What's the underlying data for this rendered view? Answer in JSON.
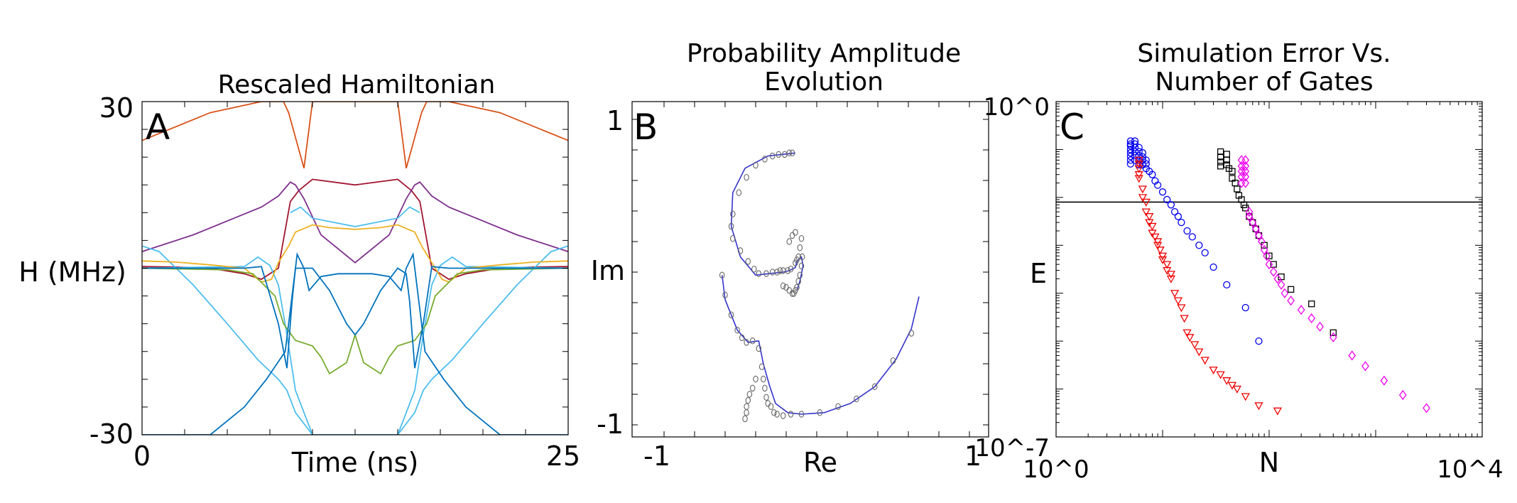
{
  "chart_data": [
    {
      "panel": "A",
      "type": "line",
      "title": "Rescaled Hamiltonian",
      "xlabel": "Time (ns)",
      "ylabel": "H (MHz)",
      "xlim": [
        0,
        25
      ],
      "ylim": [
        -30,
        30
      ],
      "xticklabels": [
        "0",
        "25"
      ],
      "yticklabels": [
        "30",
        "-30"
      ],
      "series": [
        {
          "name": "orange",
          "color": "#D95319",
          "x": [
            0,
            2,
            4,
            7,
            8.3,
            8.6,
            9.5,
            10,
            12.5,
            15,
            15.5,
            16.4,
            16.7,
            18,
            21,
            23,
            25
          ],
          "y": [
            23,
            25.5,
            28,
            30,
            30,
            28,
            18,
            30,
            30,
            30,
            18,
            28,
            30,
            30,
            28,
            25.5,
            23
          ]
        },
        {
          "name": "dark-red",
          "color": "#A2142F",
          "x": [
            0,
            2,
            4,
            6,
            7,
            8,
            8.7,
            9.2,
            10,
            12.5,
            15,
            15.8,
            16.3,
            17,
            18,
            19,
            21,
            23,
            25
          ],
          "y": [
            0.3,
            0.2,
            0,
            -1,
            -2,
            0,
            12,
            14,
            16,
            15,
            16,
            14,
            12,
            0,
            -2,
            -1,
            0,
            0.2,
            0.3
          ]
        },
        {
          "name": "purple",
          "color": "#7E2F8E",
          "x": [
            0,
            3,
            5.8,
            7,
            8,
            8.7,
            9,
            9.5,
            10.5,
            12.5,
            14.5,
            15.5,
            16,
            16.3,
            17,
            18,
            19.2,
            22,
            25
          ],
          "y": [
            3,
            6,
            9.5,
            11,
            13,
            15.5,
            15,
            12.5,
            6,
            1,
            6,
            12.5,
            15,
            15.5,
            13,
            11,
            9.5,
            6,
            3
          ]
        },
        {
          "name": "cyan",
          "color": "#4DBEEE",
          "x": [
            0,
            1,
            3,
            5,
            6.8,
            8,
            8.5,
            9,
            10,
            11,
            12.5,
            14,
            15,
            16,
            16.5,
            17,
            18.2,
            20,
            22,
            24,
            25
          ],
          "y": [
            4,
            3,
            -3,
            -10,
            -16.5,
            -20,
            -22,
            -26,
            -30,
            -30,
            -30,
            -30,
            -30,
            -26,
            -22,
            -20,
            -16.5,
            -10,
            -3,
            3,
            4
          ]
        },
        {
          "name": "cyan-2",
          "color": "#4DBEEE",
          "x": [
            0,
            6,
            6.8,
            7.5,
            8,
            8.5,
            9,
            10,
            12.5,
            15,
            16,
            16.5,
            17,
            17.5,
            18.2,
            19,
            25
          ],
          "y": [
            0,
            0.3,
            2,
            0.5,
            -3,
            -12,
            -22,
            -30,
            -30,
            -30,
            -22,
            -12,
            -3,
            0.5,
            2,
            0.3,
            0
          ]
        },
        {
          "name": "cyan-upper",
          "color": "#4DBEEE",
          "x": [
            8.7,
            9.3,
            10,
            12.5,
            15,
            15.7,
            16.3
          ],
          "y": [
            10,
            11,
            9,
            7.5,
            9,
            11,
            10
          ]
        },
        {
          "name": "yellow",
          "color": "#EDB120",
          "x": [
            0,
            2,
            4,
            6,
            7,
            7.6,
            8,
            8.6,
            9,
            10,
            11,
            12.5,
            14,
            15,
            16,
            16.4,
            17,
            17.6,
            18,
            19,
            21,
            23,
            25
          ],
          "y": [
            1.3,
            1.1,
            0.6,
            0,
            -2.5,
            -2,
            1,
            4,
            6.5,
            7.8,
            7.3,
            7,
            7.3,
            7.8,
            6.5,
            4,
            1,
            -2,
            -2.5,
            0,
            0.6,
            1.1,
            1.3
          ]
        },
        {
          "name": "green",
          "color": "#77AC30",
          "x": [
            0,
            5,
            6.5,
            7.8,
            8.3,
            9,
            10,
            10.5,
            11,
            12,
            12.5,
            13,
            14,
            14.5,
            15,
            16,
            16.7,
            17.2,
            18.5,
            20,
            25
          ],
          "y": [
            0,
            -0.3,
            -1,
            -5,
            -10,
            -13,
            -14,
            -16,
            -19,
            -17,
            -12,
            -17,
            -19,
            -16,
            -14,
            -13,
            -10,
            -5,
            -1,
            -0.3,
            0
          ]
        },
        {
          "name": "blue",
          "color": "#0072BD",
          "x": [
            0,
            6,
            7,
            8,
            8.5,
            8.8,
            9,
            10,
            11,
            12,
            12.5,
            13,
            14,
            15,
            15.5,
            15.7,
            16,
            16.5,
            17,
            18,
            19,
            25
          ],
          "y": [
            0,
            0,
            0.3,
            -10,
            -18,
            -6,
            0,
            0,
            -4,
            -10,
            -12,
            -10,
            -4,
            0,
            -1,
            -6,
            -18,
            -10,
            0.3,
            0,
            0,
            0
          ]
        },
        {
          "name": "blue-2",
          "color": "#0072BD",
          "x": [
            0,
            4,
            6,
            7.3,
            8.4,
            9.1,
            9.5,
            9.8,
            10.5,
            11.5,
            12.5,
            13.5,
            14.5,
            15.2,
            15.5,
            15.9,
            16.6,
            17.7,
            19,
            21,
            25
          ],
          "y": [
            -30,
            -30,
            -25,
            -20,
            -15,
            2.5,
            0,
            -4,
            -1.5,
            -1,
            -1,
            -1,
            -1.5,
            -4,
            0,
            2.5,
            -15,
            -20,
            -25,
            -30,
            -30
          ]
        }
      ]
    },
    {
      "panel": "B",
      "type": "line",
      "title": [
        "Probability Amplitude",
        "Evolution"
      ],
      "xlabel": "Re",
      "ylabel": "Im",
      "xlim": [
        -1,
        1
      ],
      "ylim": [
        -1,
        1
      ],
      "xticklabels": [
        "-1",
        "1"
      ],
      "yticklabels": [
        "1",
        "Im",
        "-1"
      ],
      "series": [
        {
          "name": "upper-spiral",
          "color": "#3333cc",
          "x": [
            -0.14,
            -0.32,
            -0.47,
            -0.55,
            -0.56,
            -0.5,
            -0.4,
            -0.31,
            -0.22,
            -0.18,
            -0.14,
            -0.13,
            -0.1,
            -0.09,
            -0.11,
            -0.13
          ],
          "y": [
            0.78,
            0.76,
            0.68,
            0.52,
            0.3,
            0.1,
            -0.02,
            -0.01,
            0.0,
            0.01,
            0.03,
            0.07,
            0.1,
            0.04,
            -0.06,
            -0.12
          ]
        },
        {
          "name": "lower-spiral",
          "color": "#3333cc",
          "x": [
            -0.62,
            -0.6,
            -0.52,
            -0.45,
            -0.38,
            -0.35,
            -0.31,
            -0.27,
            -0.19,
            -0.1,
            0.05,
            0.22,
            0.38,
            0.52,
            0.62,
            0.67
          ],
          "y": [
            -0.02,
            -0.18,
            -0.38,
            -0.46,
            -0.45,
            -0.6,
            -0.74,
            -0.86,
            -0.92,
            -0.93,
            -0.92,
            -0.86,
            -0.75,
            -0.57,
            -0.37,
            -0.16
          ]
        },
        {
          "name": "sim-points",
          "color": "#666666",
          "x": [
            -0.16,
            -0.18,
            -0.21,
            -0.25,
            -0.29,
            -0.34,
            -0.4,
            -0.46,
            -0.51,
            -0.55,
            -0.56,
            -0.55,
            -0.5,
            -0.45,
            -0.41,
            -0.38,
            -0.33,
            -0.29,
            -0.26,
            -0.24,
            -0.22,
            -0.19,
            -0.17,
            -0.14,
            -0.13,
            -0.12,
            -0.11,
            -0.1,
            -0.095,
            -0.1,
            -0.11,
            -0.12,
            -0.13,
            -0.14,
            -0.15,
            -0.16,
            -0.18,
            -0.2,
            -0.22,
            -0.14,
            -0.16,
            -0.18,
            -0.62,
            -0.6,
            -0.56,
            -0.52,
            -0.49,
            -0.46,
            -0.42,
            -0.38,
            -0.36,
            -0.35,
            -0.34,
            -0.33,
            -0.32,
            -0.3,
            -0.28,
            -0.26,
            -0.22,
            -0.17,
            -0.1,
            0.02,
            0.14,
            0.26,
            0.38,
            0.5,
            0.62,
            -0.4,
            -0.42,
            -0.44,
            -0.45,
            -0.46,
            -0.46,
            -0.47
          ],
          "y": [
            0.78,
            0.78,
            0.77,
            0.77,
            0.76,
            0.74,
            0.7,
            0.62,
            0.52,
            0.38,
            0.3,
            0.22,
            0.14,
            0.07,
            0.02,
            -0.01,
            -0.01,
            0.0,
            0.0,
            0.01,
            0.01,
            0.01,
            0.02,
            0.06,
            0.08,
            0.1,
            0.16,
            0.22,
            0.1,
            0.04,
            -0.02,
            -0.06,
            -0.1,
            -0.12,
            -0.14,
            -0.14,
            -0.12,
            -0.1,
            -0.09,
            0.26,
            0.24,
            0.2,
            -0.02,
            -0.15,
            -0.28,
            -0.38,
            -0.43,
            -0.46,
            -0.45,
            -0.5,
            -0.62,
            -0.7,
            -0.76,
            -0.82,
            -0.86,
            -0.88,
            -0.92,
            -0.93,
            -0.94,
            -0.93,
            -0.93,
            -0.92,
            -0.88,
            -0.83,
            -0.75,
            -0.58,
            -0.4,
            -0.7,
            -0.76,
            -0.8,
            -0.84,
            -0.88,
            -0.92,
            -0.96
          ]
        }
      ]
    },
    {
      "panel": "C",
      "type": "scatter",
      "title": [
        "Simulation Error Vs.",
        "Number of Gates"
      ],
      "xlabel": "N",
      "ylabel": "E",
      "xscale": "log",
      "yscale": "log",
      "xlim": [
        1,
        10000
      ],
      "ylim": [
        1e-07,
        1
      ],
      "xticklabels": [
        "10^0",
        "10^4"
      ],
      "yticklabels": [
        "10^0",
        "10^-7"
      ],
      "hline": 0.008,
      "series": [
        {
          "name": "blue-circles",
          "color": "#0000ee",
          "marker": "circle",
          "x": [
            5,
            5,
            5,
            5,
            5,
            5,
            5,
            5,
            5.5,
            5.5,
            5.5,
            5.5,
            5.5,
            5.5,
            6,
            6,
            6,
            6,
            6,
            6.5,
            6.5,
            6.5,
            6.5,
            7,
            7,
            7,
            7.5,
            8,
            8.5,
            9,
            10,
            11,
            12,
            13,
            14,
            15,
            17,
            19,
            22,
            25,
            30,
            40,
            60,
            80
          ],
          "y": [
            0.15,
            0.13,
            0.12,
            0.1,
            0.085,
            0.072,
            0.06,
            0.05,
            0.15,
            0.13,
            0.11,
            0.09,
            0.075,
            0.06,
            0.11,
            0.09,
            0.075,
            0.06,
            0.048,
            0.085,
            0.07,
            0.06,
            0.048,
            0.06,
            0.05,
            0.04,
            0.035,
            0.03,
            0.022,
            0.018,
            0.013,
            0.009,
            0.007,
            0.005,
            0.004,
            0.003,
            0.002,
            0.0015,
            0.001,
            0.0007,
            0.00035,
            0.00015,
            5e-05,
            1e-05
          ]
        },
        {
          "name": "red-triangles",
          "color": "#ee0000",
          "marker": "triangle",
          "x": [
            6,
            6,
            6,
            6,
            6,
            6.5,
            6.5,
            7,
            7,
            7.5,
            7.5,
            8,
            8,
            8.5,
            9,
            9,
            9.5,
            10,
            10,
            11,
            11,
            12,
            12,
            13,
            14,
            15,
            16,
            17,
            18,
            20,
            22,
            25,
            30,
            35,
            40,
            45,
            50,
            60,
            80,
            120
          ],
          "y": [
            0.06,
            0.05,
            0.04,
            0.03,
            0.025,
            0.015,
            0.01,
            0.008,
            0.005,
            0.004,
            0.003,
            0.0025,
            0.0018,
            0.0015,
            0.0012,
            0.001,
            0.0008,
            0.0006,
            0.0005,
            0.0004,
            0.0003,
            0.00025,
            0.0002,
            0.0001,
            7e-05,
            5e-05,
            3e-05,
            1.5e-05,
            1.2e-05,
            8.5e-06,
            6e-06,
            4e-06,
            2.5e-06,
            2e-06,
            1.5e-06,
            1.2e-06,
            1e-06,
            7e-07,
            4.5e-07,
            3.5e-07
          ]
        },
        {
          "name": "black-squares",
          "color": "#000000",
          "marker": "square",
          "x": [
            35,
            35,
            35,
            35,
            40,
            40,
            40,
            42,
            45,
            45,
            48,
            50,
            52,
            55,
            58,
            60,
            65,
            70,
            75,
            80,
            90,
            100,
            110,
            130,
            160,
            250,
            400
          ],
          "y": [
            0.09,
            0.07,
            0.055,
            0.045,
            0.08,
            0.06,
            0.048,
            0.04,
            0.035,
            0.025,
            0.02,
            0.015,
            0.011,
            0.009,
            0.007,
            0.006,
            0.004,
            0.003,
            0.0022,
            0.0016,
            0.001,
            0.0006,
            0.0004,
            0.00022,
            0.00012,
            6e-05,
            1.5e-05
          ]
        },
        {
          "name": "magenta-diamonds",
          "color": "#ee00ee",
          "marker": "diamond",
          "x": [
            55,
            55,
            55,
            55,
            55,
            60,
            60,
            60,
            60,
            60,
            65,
            65,
            70,
            75,
            80,
            85,
            90,
            95,
            100,
            110,
            120,
            130,
            140,
            160,
            200,
            250,
            300,
            400,
            600,
            800,
            1200,
            1800,
            3000
          ],
          "y": [
            0.06,
            0.045,
            0.035,
            0.027,
            0.02,
            0.06,
            0.045,
            0.035,
            0.027,
            0.02,
            0.005,
            0.004,
            0.003,
            0.0022,
            0.0016,
            0.0012,
            0.0008,
            0.0006,
            0.0004,
            0.00028,
            0.0002,
            0.00015,
            0.0001,
            7e-05,
            4.5e-05,
            3e-05,
            2e-05,
            1.2e-05,
            5e-06,
            3e-06,
            1.5e-06,
            7.5e-07,
            4e-07
          ]
        }
      ]
    }
  ],
  "panel_letters": [
    "A",
    "B",
    "C"
  ]
}
